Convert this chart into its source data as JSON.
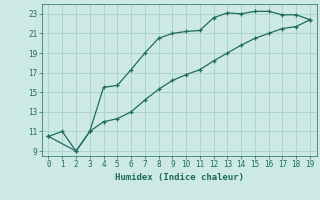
{
  "xlabel": "Humidex (Indice chaleur)",
  "bg_color": "#cce9e5",
  "grid_color": "#aed4cf",
  "line_color": "#1e6b5e",
  "xlim": [
    -0.5,
    19.5
  ],
  "ylim": [
    8.5,
    24.0
  ],
  "xticks": [
    0,
    1,
    2,
    3,
    4,
    5,
    6,
    7,
    8,
    9,
    10,
    11,
    12,
    13,
    14,
    15,
    16,
    17,
    18,
    19
  ],
  "yticks": [
    9,
    11,
    13,
    15,
    17,
    19,
    21,
    23
  ],
  "upper_x": [
    0,
    1,
    2,
    3,
    4,
    5,
    6,
    7,
    8,
    9,
    10,
    11,
    12,
    13,
    14,
    15,
    16,
    17,
    18,
    19
  ],
  "upper_y": [
    10.5,
    11.0,
    9.0,
    11.0,
    15.5,
    15.7,
    17.3,
    19.0,
    20.5,
    21.0,
    21.2,
    21.3,
    22.6,
    23.1,
    23.0,
    23.25,
    23.25,
    22.9,
    22.9,
    22.4
  ],
  "lower_x": [
    0,
    2,
    3,
    4,
    5,
    6,
    7,
    8,
    9,
    10,
    11,
    12,
    13,
    14,
    15,
    16,
    17,
    18,
    19
  ],
  "lower_y": [
    10.5,
    9.0,
    11.0,
    12.0,
    12.3,
    13.0,
    14.2,
    15.3,
    16.2,
    16.8,
    17.3,
    18.2,
    19.0,
    19.8,
    20.5,
    21.0,
    21.5,
    21.7,
    22.4
  ]
}
